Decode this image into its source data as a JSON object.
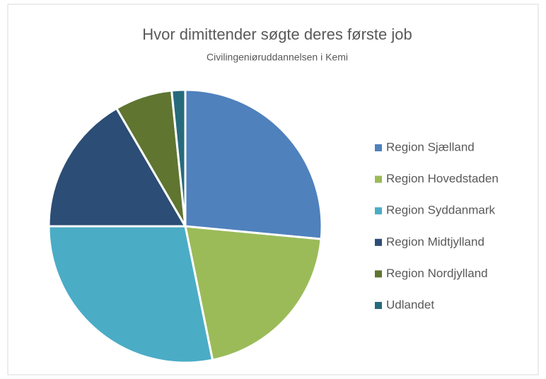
{
  "chart_data": {
    "type": "pie",
    "title": "Hvor dimittender søgte deres første job",
    "subtitle": "Civilingeniøruddannelsen i Kemi",
    "categories": [
      "Region Sjælland",
      "Region Hovedstaden",
      "Region Syddanmark",
      "Region Midtjylland",
      "Region Nordjylland",
      "Udlandet"
    ],
    "values": [
      26.5,
      20.3,
      28.2,
      16.6,
      6.8,
      1.6
    ],
    "colors": [
      "#4f81bd",
      "#9bbb59",
      "#4bacc6",
      "#2c4d75",
      "#5f7530",
      "#276a7c"
    ],
    "legend": "right"
  }
}
